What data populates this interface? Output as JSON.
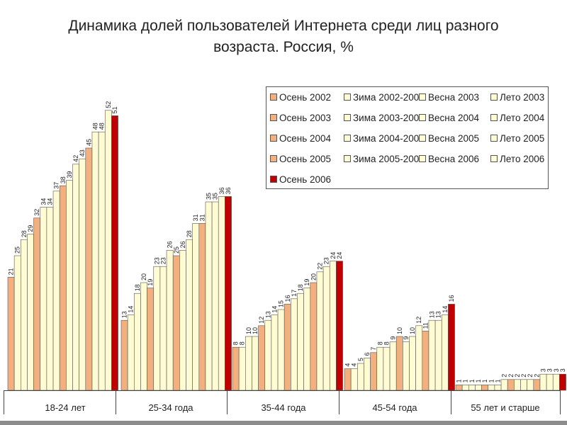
{
  "chart_data": {
    "type": "bar",
    "title": [
      "Динамика долей пользователей Интернета среди лиц разного",
      "возраста. Россия, %"
    ],
    "xlabel": "",
    "ylabel": "",
    "categories": [
      "18-24 лет",
      "25-34 года",
      "35-44 года",
      "45-54 года",
      "55 лет  и старше"
    ],
    "ylim": [
      0,
      55
    ],
    "grid": false,
    "legend_position": "top-right",
    "series": [
      {
        "name": "Осень 2002",
        "values": [
          21,
          13,
          8,
          4,
          1
        ]
      },
      {
        "name": "Зима 2002-2003",
        "values": [
          25,
          14,
          8,
          4,
          1
        ]
      },
      {
        "name": "Весна 2003",
        "values": [
          28,
          18,
          10,
          5,
          1
        ]
      },
      {
        "name": "Лето 2003",
        "values": [
          29,
          20,
          10,
          6,
          1
        ]
      },
      {
        "name": "Осень 2003",
        "values": [
          32,
          19,
          12,
          7,
          1
        ]
      },
      {
        "name": "Зима 2003-2004",
        "values": [
          34,
          23,
          13,
          8,
          1
        ]
      },
      {
        "name": "Весна 2004",
        "values": [
          34,
          23,
          14,
          8,
          1
        ]
      },
      {
        "name": "Лето 2004",
        "values": [
          37,
          26,
          15,
          9,
          2
        ]
      },
      {
        "name": "Осень 2004",
        "values": [
          38,
          25,
          16,
          10,
          2
        ]
      },
      {
        "name": "Зима 2004-2005",
        "values": [
          39,
          26,
          17,
          9,
          2
        ]
      },
      {
        "name": "Весна 2005",
        "values": [
          42,
          28,
          18,
          10,
          2
        ]
      },
      {
        "name": "Лето 2005",
        "values": [
          43,
          31,
          19,
          12,
          2
        ]
      },
      {
        "name": "Осень 2005",
        "values": [
          45,
          31,
          20,
          11,
          2
        ]
      },
      {
        "name": "Зима 2005-2006",
        "values": [
          48,
          35,
          22,
          13,
          3
        ]
      },
      {
        "name": "Весна 2006",
        "values": [
          48,
          35,
          23,
          13,
          3
        ]
      },
      {
        "name": "Лето 2006",
        "values": [
          52,
          36,
          24,
          14,
          3
        ]
      },
      {
        "name": "Осень 2006",
        "values": [
          51,
          36,
          24,
          16,
          3
        ]
      }
    ],
    "series_colors": {
      "autumn": "#f2b07e",
      "other": "#fffbd2",
      "final": "#c00000",
      "outline": "#555555"
    }
  }
}
